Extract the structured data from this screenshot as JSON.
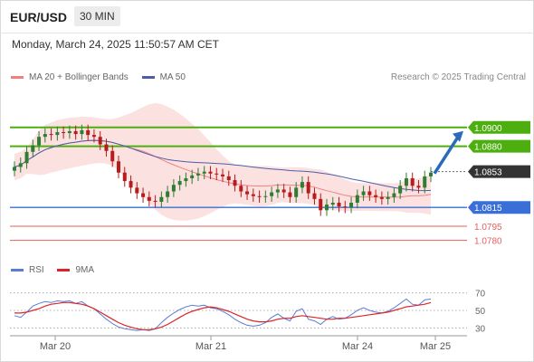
{
  "header": {
    "pair": "EUR/USD",
    "timeframe": "30 MIN"
  },
  "timestamp": "Monday, March 24, 2025 11:50:57 AM CET",
  "legend": {
    "ma20": {
      "label": "MA 20 + Bollinger Bands",
      "color": "#f08080"
    },
    "ma50": {
      "label": "MA 50",
      "color": "#4a5fa8"
    }
  },
  "source": "Research © 2025 Trading Central",
  "rsi_legend": {
    "rsi": {
      "label": "RSI",
      "color": "#5b7bd5"
    },
    "ma9": {
      "label": "9MA",
      "color": "#d9262b"
    }
  },
  "colors": {
    "resistance": "#4caf0f",
    "support": "#3a6fd8",
    "support_minor": "#e06060",
    "candle_up": "#2e7d32",
    "candle_down": "#b71c1c",
    "band_fill": "#fbd7d7",
    "arrow": "#2a6ab8",
    "last_price_bg": "#333333"
  },
  "chart_data": [
    {
      "type": "candlestick",
      "title": "EUR/USD 30 MIN",
      "x_ticks": [
        "Mar 20",
        "Mar 21",
        "Mar 24",
        "Mar 25"
      ],
      "levels": {
        "resistance": [
          1.09,
          1.088
        ],
        "last_price": 1.0853,
        "support": [
          1.0815,
          1.0795,
          1.078
        ]
      },
      "ylim": [
        1.077,
        1.092
      ],
      "close": [
        1.0858,
        1.0862,
        1.0874,
        1.0881,
        1.089,
        1.0893,
        1.0892,
        1.0895,
        1.0894,
        1.0896,
        1.0893,
        1.0897,
        1.0892,
        1.089,
        1.0882,
        1.0875,
        1.0864,
        1.0852,
        1.0843,
        1.0836,
        1.083,
        1.0826,
        1.0822,
        1.0821,
        1.0826,
        1.0832,
        1.0839,
        1.0843,
        1.0846,
        1.0849,
        1.0851,
        1.0853,
        1.0851,
        1.085,
        1.0848,
        1.0844,
        1.0838,
        1.0832,
        1.0829,
        1.0827,
        1.0826,
        1.0827,
        1.0831,
        1.0834,
        1.0831,
        1.0826,
        1.0836,
        1.0842,
        1.083,
        1.0824,
        1.0812,
        1.0818,
        1.082,
        1.0816,
        1.0815,
        1.082,
        1.0828,
        1.0832,
        1.0828,
        1.0826,
        1.0824,
        1.0826,
        1.083,
        1.0838,
        1.0846,
        1.0838,
        1.0836,
        1.0848,
        1.0852
      ],
      "rsi": {
        "ylim": [
          20,
          80
        ],
        "ticks": [
          70,
          50,
          30
        ],
        "values": [
          44,
          42,
          48,
          55,
          58,
          60,
          59,
          61,
          60,
          61,
          58,
          60,
          55,
          52,
          46,
          40,
          35,
          31,
          29,
          28,
          27,
          28,
          27,
          29,
          36,
          42,
          47,
          51,
          54,
          56,
          55,
          56,
          53,
          52,
          49,
          45,
          40,
          36,
          33,
          32,
          33,
          36,
          42,
          46,
          41,
          38,
          49,
          52,
          40,
          38,
          34,
          40,
          43,
          40,
          41,
          45,
          50,
          53,
          50,
          48,
          47,
          49,
          53,
          58,
          63,
          57,
          56,
          62,
          63
        ],
        "ma9": [
          47,
          47,
          48,
          50,
          52,
          55,
          57,
          58,
          59,
          59,
          58,
          57,
          55,
          52,
          48,
          44,
          40,
          36,
          33,
          31,
          29,
          28,
          28,
          29,
          31,
          34,
          38,
          42,
          46,
          49,
          51,
          53,
          54,
          53,
          51,
          49,
          46,
          43,
          40,
          38,
          37,
          37,
          38,
          40,
          41,
          41,
          43,
          44,
          43,
          42,
          41,
          40,
          40,
          41,
          41,
          42,
          43,
          44,
          45,
          46,
          47,
          48,
          50,
          52,
          54,
          55,
          56,
          57,
          59
        ]
      }
    }
  ]
}
